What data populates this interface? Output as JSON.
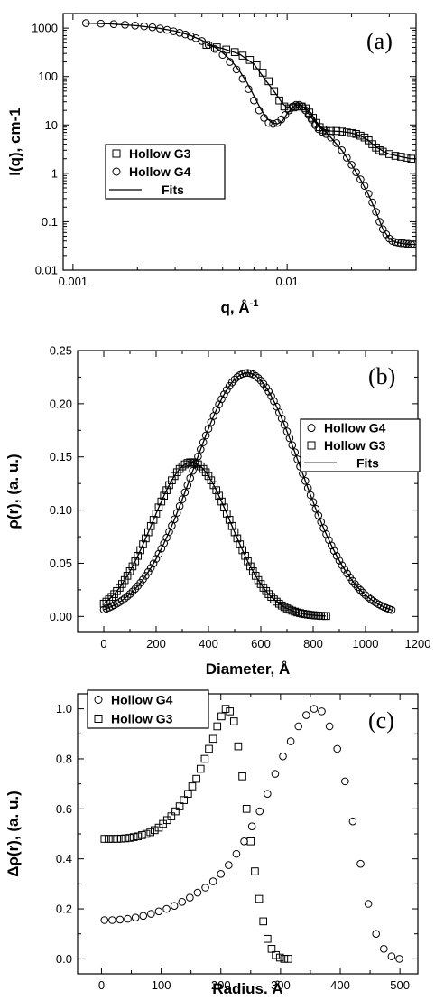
{
  "chart_data": [
    {
      "panel_label": "(a)",
      "type": "scatter",
      "xlabel": "q, Å",
      "xlabel_sup": "-1",
      "ylabel": "I(q), cm-1",
      "xscale": "log",
      "yscale": "log",
      "xlim": [
        0.0009,
        0.04
      ],
      "ylim": [
        0.01,
        2000
      ],
      "x_ticks": [
        {
          "value": 0.001,
          "label": "0.001"
        },
        {
          "value": 0.01,
          "label": "0.01"
        }
      ],
      "y_ticks": [
        {
          "value": 0.01,
          "label": "0.01"
        },
        {
          "value": 0.1,
          "label": "0.1"
        },
        {
          "value": 1,
          "label": "1"
        },
        {
          "value": 10,
          "label": "10"
        },
        {
          "value": 100,
          "label": "100"
        },
        {
          "value": 1000,
          "label": "1000"
        }
      ],
      "legend_position": "center-left",
      "legend": [
        {
          "name": "Hollow G3",
          "marker": "square"
        },
        {
          "name": "Hollow G4",
          "marker": "circle"
        },
        {
          "name": "Fits",
          "marker": "line"
        }
      ],
      "series": [
        {
          "name": "Hollow G3",
          "marker": "square",
          "x": [
            0.0042,
            0.0047,
            0.0052,
            0.0057,
            0.0062,
            0.0067,
            0.0072,
            0.0077,
            0.0082,
            0.0087,
            0.0092,
            0.0097,
            0.0102,
            0.0107,
            0.0112,
            0.0117,
            0.0122,
            0.0127,
            0.0132,
            0.0137,
            0.0142,
            0.0147,
            0.0152,
            0.016,
            0.017,
            0.018,
            0.019,
            0.02,
            0.021,
            0.022,
            0.023,
            0.024,
            0.025,
            0.026,
            0.027,
            0.028,
            0.03,
            0.032,
            0.034,
            0.036,
            0.038
          ],
          "y": [
            450,
            400,
            360,
            320,
            270,
            220,
            170,
            120,
            80,
            50,
            32,
            24,
            22,
            23,
            24,
            24,
            22,
            18,
            14,
            11,
            9,
            8,
            7.5,
            7.5,
            7.5,
            7.3,
            7,
            6.8,
            6.5,
            6,
            5.5,
            4.8,
            4.0,
            3.4,
            3.0,
            2.8,
            2.5,
            2.3,
            2.2,
            2.1,
            2.0
          ]
        },
        {
          "name": "Hollow G4",
          "marker": "circle",
          "x": [
            0.00115,
            0.00135,
            0.00155,
            0.00175,
            0.00195,
            0.00215,
            0.00235,
            0.00255,
            0.00275,
            0.00295,
            0.00315,
            0.00335,
            0.00355,
            0.00375,
            0.004,
            0.0043,
            0.0046,
            0.005,
            0.0054,
            0.0058,
            0.0062,
            0.0066,
            0.007,
            0.0074,
            0.0078,
            0.0082,
            0.0086,
            0.009,
            0.0094,
            0.0098,
            0.0102,
            0.0106,
            0.011,
            0.0114,
            0.0118,
            0.0122,
            0.0126,
            0.013,
            0.0135,
            0.014,
            0.0146,
            0.0152,
            0.016,
            0.017,
            0.018,
            0.019,
            0.02,
            0.021,
            0.022,
            0.023,
            0.024,
            0.025,
            0.026,
            0.027,
            0.028,
            0.029,
            0.03,
            0.031,
            0.032,
            0.033,
            0.034,
            0.035,
            0.036,
            0.037,
            0.038,
            0.039
          ],
          "y": [
            1270,
            1240,
            1210,
            1170,
            1130,
            1090,
            1040,
            980,
            920,
            860,
            800,
            740,
            680,
            620,
            540,
            450,
            370,
            280,
            200,
            140,
            90,
            55,
            32,
            20,
            14,
            11,
            10.5,
            11,
            13,
            16,
            20,
            24,
            26,
            26,
            24,
            20,
            16,
            13,
            10,
            8.2,
            7.2,
            6.5,
            5.5,
            4.2,
            3.0,
            2.1,
            1.5,
            1.05,
            0.75,
            0.55,
            0.38,
            0.25,
            0.16,
            0.1,
            0.07,
            0.055,
            0.045,
            0.04,
            0.038,
            0.037,
            0.036,
            0.036,
            0.035,
            0.035,
            0.034,
            0.034
          ]
        }
      ],
      "fits": [
        {
          "name": "Fits",
          "x": [
            0.00115,
            0.0015,
            0.002,
            0.0025,
            0.003,
            0.0035,
            0.004,
            0.0045,
            0.005,
            0.0055,
            0.006,
            0.0065,
            0.007,
            0.0075,
            0.008,
            0.0085,
            0.009,
            0.0095,
            0.01,
            0.0105,
            0.011,
            0.0115,
            0.012,
            0.0125,
            0.013,
            0.014,
            0.015,
            0.016,
            0.018,
            0.02,
            0.022,
            0.024,
            0.026,
            0.028,
            0.03,
            0.032,
            0.035,
            0.038,
            0.04
          ],
          "y": [
            1270,
            1220,
            1120,
            1000,
            870,
            720,
            560,
            430,
            310,
            210,
            130,
            75,
            40,
            22,
            14,
            11,
            10.5,
            12,
            17,
            22,
            26,
            26,
            23,
            18,
            14,
            9.5,
            7.5,
            5.5,
            3.0,
            1.5,
            0.75,
            0.36,
            0.16,
            0.07,
            0.045,
            0.038,
            0.035,
            0.034,
            0.034
          ]
        },
        {
          "name": "Fits",
          "x": [
            0.0042,
            0.005,
            0.006,
            0.007,
            0.008,
            0.009,
            0.0095,
            0.01,
            0.0105,
            0.011,
            0.0115,
            0.012,
            0.0125,
            0.013,
            0.014,
            0.015,
            0.016,
            0.018,
            0.02,
            0.022,
            0.024,
            0.026,
            0.028,
            0.03,
            0.034,
            0.038,
            0.04
          ],
          "y": [
            450,
            380,
            290,
            180,
            80,
            40,
            28,
            23,
            22,
            23,
            24,
            23,
            20,
            16,
            10,
            8,
            7.5,
            7.3,
            6.8,
            6.0,
            4.8,
            3.5,
            2.9,
            2.5,
            2.2,
            2.0,
            2.0
          ]
        }
      ]
    },
    {
      "panel_label": "(b)",
      "type": "scatter",
      "xlabel": "Diameter, Å",
      "ylabel": "ρ(r), (a. u.)",
      "xlim": [
        -100,
        1200
      ],
      "ylim": [
        -0.015,
        0.25
      ],
      "x_ticks": [
        0,
        200,
        400,
        600,
        800,
        1000,
        1200
      ],
      "y_ticks": [
        {
          "value": 0,
          "label": "0.00"
        },
        {
          "value": 0.05,
          "label": "0.05"
        },
        {
          "value": 0.1,
          "label": "0.10"
        },
        {
          "value": 0.15,
          "label": "0.15"
        },
        {
          "value": 0.2,
          "label": "0.20"
        },
        {
          "value": 0.25,
          "label": "0.25"
        }
      ],
      "legend_position": "top-right",
      "legend": [
        {
          "name": "Hollow G4",
          "marker": "circle"
        },
        {
          "name": "Hollow G3",
          "marker": "square"
        },
        {
          "name": "Fits",
          "marker": "line"
        }
      ],
      "series": [
        {
          "name": "Hollow G4",
          "marker": "circle",
          "curve": "gaussian",
          "center": 548,
          "sigma": 205,
          "amplitude": 0.229,
          "x_start": 0,
          "x_end": 1100,
          "x_step": 10
        },
        {
          "name": "Hollow G3",
          "marker": "square",
          "curve": "gaussian",
          "center": 335,
          "sigma": 150,
          "amplitude": 0.145,
          "x_start": 0,
          "x_end": 850,
          "x_step": 10
        }
      ],
      "fits": [
        {
          "name": "Fits",
          "curve": "gaussian",
          "center": 548,
          "sigma": 205,
          "amplitude": 0.229,
          "x_start": 0,
          "x_end": 1100
        },
        {
          "name": "Fits",
          "curve": "gaussian",
          "center": 335,
          "sigma": 150,
          "amplitude": 0.145,
          "x_start": 0,
          "x_end": 850
        }
      ]
    },
    {
      "panel_label": "(c)",
      "type": "scatter",
      "xlabel": "Radius. Å",
      "ylabel": "Δρ(r), (a. u.)",
      "xlim": [
        -40,
        530
      ],
      "ylim": [
        -0.06,
        1.06
      ],
      "x_ticks": [
        0,
        100,
        200,
        300,
        400,
        500
      ],
      "y_ticks": [
        {
          "value": 0,
          "label": "0.0"
        },
        {
          "value": 0.2,
          "label": "0.2"
        },
        {
          "value": 0.4,
          "label": "0.4"
        },
        {
          "value": 0.6,
          "label": "0.6"
        },
        {
          "value": 0.8,
          "label": "0.8"
        },
        {
          "value": 1,
          "label": "1.0"
        }
      ],
      "legend_position": "top-left",
      "legend": [
        {
          "name": "Hollow G4",
          "marker": "circle"
        },
        {
          "name": "Hollow G3",
          "marker": "square"
        }
      ],
      "series": [
        {
          "name": "Hollow G4",
          "marker": "circle",
          "x": [
            5,
            18,
            31,
            44,
            57,
            70,
            83,
            96,
            109,
            122,
            135,
            148,
            161,
            174,
            187,
            200,
            213,
            226,
            239,
            252,
            265,
            278,
            291,
            304,
            317,
            330,
            343,
            356,
            369,
            382,
            395,
            408,
            421,
            434,
            447,
            460,
            473,
            486,
            499
          ],
          "y": [
            0.155,
            0.155,
            0.157,
            0.16,
            0.165,
            0.172,
            0.18,
            0.19,
            0.2,
            0.212,
            0.228,
            0.245,
            0.265,
            0.285,
            0.31,
            0.34,
            0.375,
            0.42,
            0.47,
            0.53,
            0.59,
            0.66,
            0.74,
            0.81,
            0.87,
            0.93,
            0.975,
            1.0,
            0.99,
            0.93,
            0.84,
            0.71,
            0.55,
            0.38,
            0.22,
            0.1,
            0.04,
            0.01,
            0.0
          ]
        },
        {
          "name": "Hollow G3",
          "marker": "square",
          "x": [
            5,
            12,
            19,
            26,
            33,
            40,
            47,
            54,
            61,
            68,
            75,
            82,
            89,
            96,
            103,
            110,
            117,
            124,
            131,
            138,
            145,
            152,
            159,
            166,
            173,
            180,
            187,
            194,
            201,
            208,
            215,
            222,
            229,
            236,
            243,
            250,
            257,
            264,
            271,
            278,
            285,
            292,
            299,
            306,
            313
          ],
          "y": [
            0.48,
            0.48,
            0.48,
            0.48,
            0.481,
            0.482,
            0.484,
            0.487,
            0.49,
            0.495,
            0.5,
            0.507,
            0.515,
            0.525,
            0.54,
            0.555,
            0.57,
            0.59,
            0.61,
            0.635,
            0.66,
            0.69,
            0.72,
            0.76,
            0.8,
            0.84,
            0.88,
            0.93,
            0.97,
            1.0,
            0.99,
            0.95,
            0.85,
            0.73,
            0.6,
            0.47,
            0.35,
            0.24,
            0.15,
            0.08,
            0.04,
            0.015,
            0.005,
            0.0,
            0.0
          ]
        }
      ]
    }
  ]
}
